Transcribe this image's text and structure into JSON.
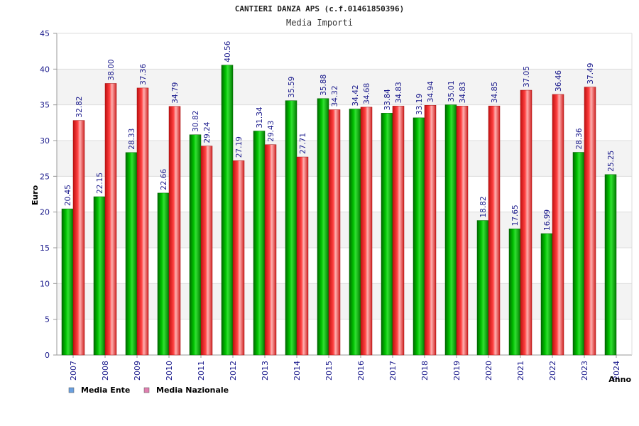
{
  "chart_data": {
    "type": "bar",
    "title": "CANTIERI DANZA APS (c.f.01461850396)",
    "subtitle": "Media Importi",
    "xlabel": "Anno",
    "ylabel": "Euro",
    "ylim": [
      0,
      45
    ],
    "yticks": [
      0,
      5,
      10,
      15,
      20,
      25,
      30,
      35,
      40,
      45
    ],
    "grid": true,
    "legend_position": "bottom-left",
    "categories": [
      "2007",
      "2008",
      "2009",
      "2010",
      "2011",
      "2012",
      "2013",
      "2014",
      "2015",
      "2016",
      "2017",
      "2018",
      "2019",
      "2020",
      "2021",
      "2022",
      "2023",
      "2024"
    ],
    "series": [
      {
        "name": "Media Ente",
        "color": "#00b000",
        "legend_color": "#6aa0e0",
        "values": [
          20.45,
          22.15,
          28.33,
          22.66,
          30.82,
          40.56,
          31.34,
          35.59,
          35.88,
          34.42,
          33.84,
          33.19,
          35.01,
          18.82,
          17.65,
          16.99,
          28.36,
          25.25
        ],
        "labels": [
          "20.45",
          "22.15",
          "28.33",
          "22.66",
          "30.82",
          "40.56",
          "31.34",
          "35.59",
          "35.88",
          "34.42",
          "33.84",
          "33.19",
          "35.01",
          "18.82",
          "17.65",
          "16.99",
          "28.36",
          "25.25"
        ]
      },
      {
        "name": "Media Nazionale",
        "color": "#e83030",
        "legend_color": "#e080b0",
        "values": [
          32.82,
          38.0,
          37.36,
          34.79,
          29.24,
          27.19,
          29.43,
          27.71,
          34.32,
          34.68,
          34.83,
          34.94,
          34.83,
          34.85,
          37.05,
          36.46,
          37.49,
          null
        ],
        "labels": [
          "32.82",
          "38.00",
          "37.36",
          "34.79",
          "29.24",
          "27.19",
          "29.43",
          "27.71",
          "34.32",
          "34.68",
          "34.83",
          "34.94",
          "34.83",
          "34.85",
          "37.05",
          "36.46",
          "37.49",
          ""
        ]
      }
    ]
  }
}
